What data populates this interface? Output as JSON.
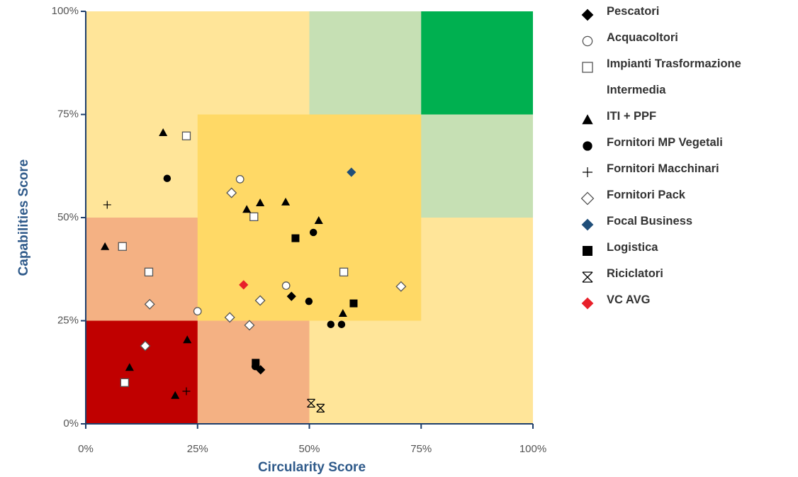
{
  "chart_data": {
    "type": "scatter",
    "xlabel": "Circularity Score",
    "ylabel": "Capabilities Score",
    "xlim": [
      0,
      100
    ],
    "ylim": [
      0,
      100
    ],
    "xticks": [
      {
        "value": 0,
        "label": "0%"
      },
      {
        "value": 25,
        "label": "25%"
      },
      {
        "value": 50,
        "label": "50%"
      },
      {
        "value": 75,
        "label": "75%"
      },
      {
        "value": 100,
        "label": "100%"
      }
    ],
    "yticks": [
      {
        "value": 0,
        "label": "0%"
      },
      {
        "value": 25,
        "label": "25%"
      },
      {
        "value": 50,
        "label": "50%"
      },
      {
        "value": 75,
        "label": "75%"
      },
      {
        "value": 100,
        "label": "100%"
      }
    ],
    "regions": [
      {
        "x": [
          0,
          100
        ],
        "y": [
          0,
          100
        ],
        "color": "#ffe599"
      },
      {
        "x": [
          50,
          100
        ],
        "y": [
          50,
          100
        ],
        "color": "#c6e0b4"
      },
      {
        "x": [
          75,
          100
        ],
        "y": [
          75,
          100
        ],
        "color": "#00b050"
      },
      {
        "x": [
          0,
          50
        ],
        "y": [
          0,
          50
        ],
        "color": "#f4b183"
      },
      {
        "x": [
          0,
          25
        ],
        "y": [
          0,
          25
        ],
        "color": "#c00000"
      },
      {
        "x": [
          25,
          75
        ],
        "y": [
          25,
          75
        ],
        "color": "#ffd966"
      }
    ],
    "series": [
      {
        "name": "Pescatori",
        "marker": "diamond",
        "color": "#000000",
        "x": [
          46,
          39.1
        ],
        "y": [
          30.9,
          13.1
        ]
      },
      {
        "name": "Acquacoltori",
        "marker": "circle",
        "color": "#ffffff",
        "x": [
          34.5,
          44.8,
          25
        ],
        "y": [
          59.3,
          33.5,
          27.3
        ]
      },
      {
        "name": "Impianti Trasformazione Intermedia",
        "marker": "square",
        "color": "#ffffff",
        "x": [
          22.5,
          37.6,
          8.2,
          14.1,
          57.7,
          8.7
        ],
        "y": [
          69.8,
          50.2,
          43,
          36.8,
          36.8,
          10
        ]
      },
      {
        "name": "ITI + PPF",
        "marker": "triangle",
        "color": "#000000",
        "x": [
          17.3,
          36,
          39,
          44.7,
          52.1,
          4.3,
          57.5,
          22.7,
          9.8,
          20
        ],
        "y": [
          70.6,
          52,
          53.6,
          53.8,
          49.3,
          43,
          26.8,
          20.4,
          13.7,
          6.9
        ]
      },
      {
        "name": "Fornitori MP Vegetali",
        "marker": "circle",
        "color": "#000000",
        "x": [
          18.2,
          50.9,
          49.9,
          54.8,
          57.2,
          37.9
        ],
        "y": [
          59.5,
          46.4,
          29.7,
          24.1,
          24.1,
          13.9
        ]
      },
      {
        "name": "Fornitori Macchinari",
        "marker": "plus",
        "color": "#000000",
        "x": [
          4.8,
          22.5
        ],
        "y": [
          53.1,
          7.9
        ]
      },
      {
        "name": "Fornitori Pack",
        "marker": "diamond",
        "color": "#ffffff",
        "x": [
          32.6,
          14.3,
          39,
          32.2,
          36.6,
          13.3,
          70.5
        ],
        "y": [
          56,
          29,
          29.9,
          25.8,
          23.9,
          18.9,
          33.3
        ]
      },
      {
        "name": "Focal Business",
        "marker": "diamond",
        "color": "#1f4e79",
        "x": [
          59.4
        ],
        "y": [
          61
        ]
      },
      {
        "name": "Logistica",
        "marker": "square",
        "color": "#000000",
        "x": [
          46.9,
          59.9,
          38
        ],
        "y": [
          45,
          29.2,
          14.8
        ]
      },
      {
        "name": "Riciclatori",
        "marker": "hourglass",
        "color": "#000000",
        "x": [
          50.4,
          52.5
        ],
        "y": [
          5,
          3.8
        ]
      },
      {
        "name": "VC AVG",
        "marker": "diamond",
        "color": "#e8202a",
        "x": [
          35.3
        ],
        "y": [
          33.7
        ]
      }
    ]
  }
}
